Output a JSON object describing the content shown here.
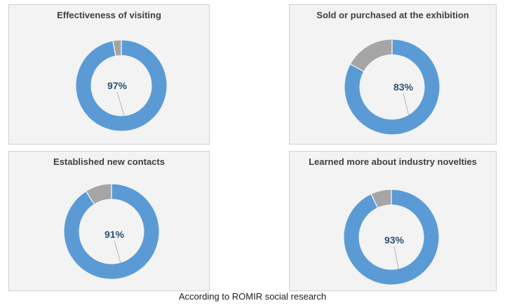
{
  "colors": {
    "accent": "#5b9bd5",
    "remainder": "#a5a5a5",
    "label": "#2f4f78",
    "panel": "#f3f3f3"
  },
  "chart_data": [
    {
      "type": "pie",
      "title": "Effectiveness of visiting",
      "value": 97,
      "remainder": 3,
      "label": "97%"
    },
    {
      "type": "pie",
      "title": "Sold or purchased at the exhibition",
      "value": 83,
      "remainder": 17,
      "label": "83%"
    },
    {
      "type": "pie",
      "title": "Established new contacts",
      "value": 91,
      "remainder": 9,
      "label": "91%"
    },
    {
      "type": "pie",
      "title": "Learned more about industry novelties",
      "value": 93,
      "remainder": 7,
      "label": "93%"
    }
  ],
  "footer": {
    "text": "According to ROMIR social research"
  }
}
